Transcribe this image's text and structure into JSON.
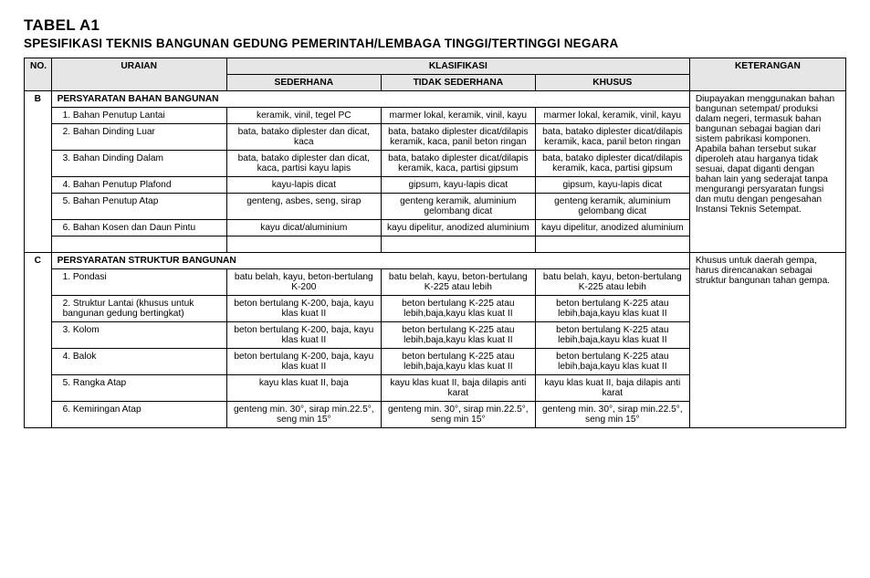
{
  "title": "TABEL  A1",
  "subtitle": "SPESIFIKASI TEKNIS BANGUNAN GEDUNG PEMERINTAH/LEMBAGA TINGGI/TERTINGGI NEGARA",
  "headers": {
    "no": "NO.",
    "uraian": "URAIAN",
    "klasifikasi": "KLASIFIKASI",
    "sederhana": "SEDERHANA",
    "tidak_sederhana": "TIDAK SEDERHANA",
    "khusus": "KHUSUS",
    "keterangan": "KETERANGAN"
  },
  "secB": {
    "code": "B",
    "title": "PERSYARATAN BAHAN BANGUNAN",
    "keterangan": "Diupayakan menggunakan bahan bangunan setempat/ produksi dalam negeri, termasuk bahan bangunan sebagai bagian dari sistem pabrikasi komponen. Apabila bahan tersebut sukar diperoleh atau harganya tidak sesuai, dapat diganti dengan bahan lain yang sederajat tanpa mengurangi persyaratan fungsi dan mutu dengan pengesahan Instansi Teknis Setempat.",
    "rows": [
      {
        "u": "1. Bahan Penutup Lantai",
        "a": "keramik, vinil, tegel PC",
        "b": "marmer lokal, keramik, vinil, kayu",
        "c": "marmer lokal, keramik, vinil, kayu"
      },
      {
        "u": "2. Bahan Dinding Luar",
        "a": "bata, batako diplester dan dicat, kaca",
        "b": "bata, batako diplester dicat/dilapis keramik, kaca, panil beton ringan",
        "c": "bata, batako diplester dicat/dilapis keramik, kaca, panil beton ringan"
      },
      {
        "u": "3. Bahan Dinding Dalam",
        "a": "bata, batako diplester dan dicat, kaca, partisi kayu lapis",
        "b": "bata, batako diplester dicat/dilapis keramik, kaca, partisi gipsum",
        "c": "bata, batako diplester dicat/dilapis keramik, kaca, partisi gipsum"
      },
      {
        "u": "4. Bahan Penutup Plafond",
        "a": "kayu-lapis dicat",
        "b": "gipsum, kayu-lapis dicat",
        "c": "gipsum, kayu-lapis dicat"
      },
      {
        "u": "5. Bahan Penutup Atap",
        "a": "genteng, asbes, seng, sirap",
        "b": "genteng keramik, aluminium gelombang dicat",
        "c": "genteng keramik, aluminium gelombang dicat"
      },
      {
        "u": "6. Bahan Kosen dan  Daun Pintu",
        "a": "kayu dicat/aluminium",
        "b": "kayu dipelitur, anodized aluminium",
        "c": "kayu dipelitur, anodized aluminium"
      }
    ]
  },
  "secC": {
    "code": "C",
    "title": "PERSYARATAN STRUKTUR BANGUNAN",
    "keterangan": "Khusus untuk daerah gempa, harus direncanakan sebagai struktur bangunan tahan gempa.",
    "rows": [
      {
        "u": "1. Pondasi",
        "a": "batu belah, kayu, beton-bertulang K-200",
        "b": "batu belah, kayu, beton-bertulang K-225 atau lebih",
        "c": "batu belah, kayu, beton-bertulang K-225 atau lebih"
      },
      {
        "u": "2. Struktur Lantai (khusus untuk bangunan gedung bertingkat)",
        "a": "beton bertulang K-200, baja, kayu klas kuat II",
        "b": "beton bertulang K-225 atau lebih,baja,kayu klas kuat II",
        "c": "beton bertulang K-225 atau lebih,baja,kayu klas kuat II"
      },
      {
        "u": "3. Kolom",
        "a": "beton bertulang K-200, baja, kayu klas kuat II",
        "b": "beton bertulang K-225 atau lebih,baja,kayu klas kuat II",
        "c": "beton bertulang K-225 atau lebih,baja,kayu klas kuat II"
      },
      {
        "u": "4. Balok",
        "a": "beton bertulang K-200, baja, kayu klas kuat II",
        "b": "beton bertulang K-225 atau lebih,baja,kayu klas kuat II",
        "c": "beton bertulang K-225 atau lebih,baja,kayu klas kuat II"
      },
      {
        "u": "5. Rangka Atap",
        "a": "kayu klas kuat II, baja",
        "b": "kayu klas kuat II, baja dilapis anti karat",
        "c": "kayu klas kuat II, baja dilapis anti karat"
      },
      {
        "u": "6. Kemiringan Atap",
        "a": "genteng min. 30°, sirap min.22.5°, seng min 15°",
        "b": "genteng min. 30°, sirap min.22.5°, seng min 15°",
        "c": "genteng min. 30°, sirap min.22.5°, seng min 15°"
      }
    ]
  }
}
